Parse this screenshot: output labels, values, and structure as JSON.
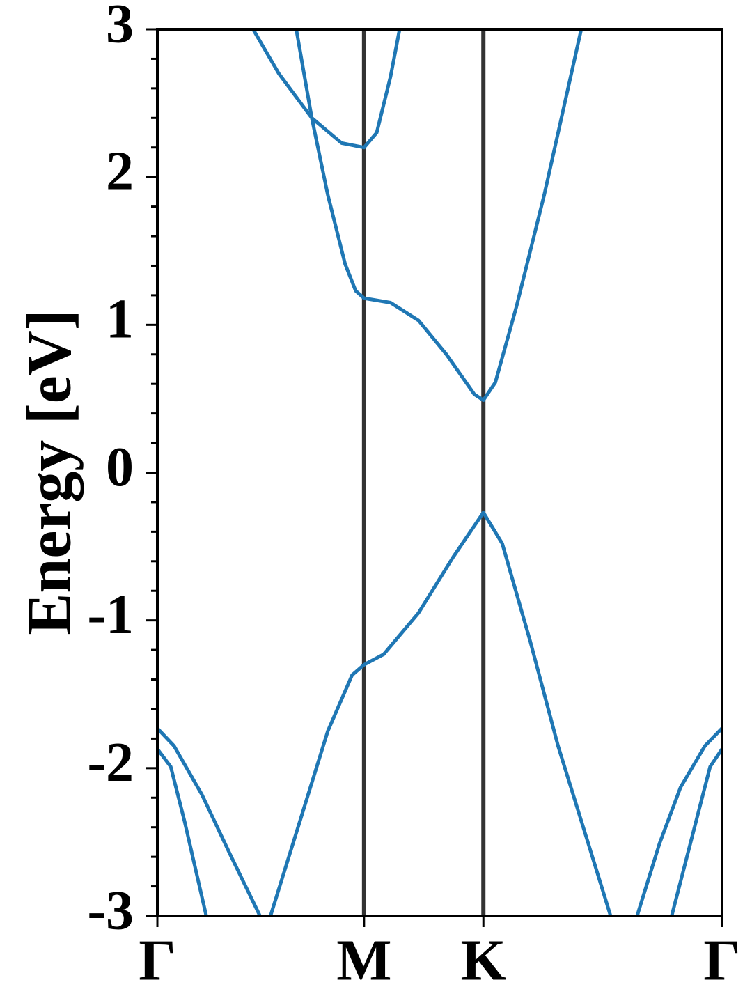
{
  "chart_data": {
    "type": "line",
    "ylabel": "Energy [eV]",
    "xlim": [
      0,
      2.366
    ],
    "ylim": [
      -3,
      3
    ],
    "xticks": [
      {
        "value": 0,
        "label": "Γ"
      },
      {
        "value": 0.866,
        "label": "M"
      },
      {
        "value": 1.366,
        "label": "K"
      },
      {
        "value": 2.366,
        "label": "Γ"
      }
    ],
    "yticks": [
      -3,
      -2,
      -1,
      0,
      1,
      2,
      3
    ],
    "yminorticks": [
      -2.8,
      -2.6,
      -2.4,
      -2.2,
      -1.8,
      -1.6,
      -1.4,
      -1.2,
      -0.8,
      -0.6,
      -0.4,
      -0.2,
      0.2,
      0.4,
      0.6,
      0.8,
      1.2,
      1.4,
      1.6,
      1.8,
      2.2,
      2.4,
      2.6,
      2.8
    ],
    "vlines": [
      0.866,
      1.366
    ],
    "vline_color": "#333333",
    "series": [
      {
        "color": "#1f77b4",
        "x": [
          0.401,
          0.509,
          0.647,
          0.772,
          0.866,
          0.919,
          0.977,
          1.015
        ],
        "values": [
          3.0,
          2.7,
          2.4,
          2.23,
          2.2,
          2.3,
          2.68,
          3.0
        ]
      },
      {
        "color": "#1f77b4",
        "x": [
          0.582,
          0.647,
          0.714,
          0.787,
          0.831,
          0.866,
          0.977,
          1.094,
          1.211,
          1.328,
          1.366,
          1.416,
          1.504,
          1.621,
          1.776
        ],
        "values": [
          3.0,
          2.4,
          1.88,
          1.41,
          1.23,
          1.18,
          1.15,
          1.03,
          0.8,
          0.53,
          0.49,
          0.61,
          1.12,
          1.88,
          3.0
        ]
      },
      {
        "color": "#1f77b4",
        "x": [
          0.474,
          0.597,
          0.714,
          0.816,
          0.866,
          0.948,
          1.094,
          1.24,
          1.366,
          1.445,
          1.562,
          1.679,
          1.796,
          1.899
        ],
        "values": [
          -3.0,
          -2.36,
          -1.75,
          -1.37,
          -1.3,
          -1.23,
          -0.95,
          -0.57,
          -0.27,
          -0.48,
          -1.14,
          -1.85,
          -2.46,
          -3.0
        ]
      },
      {
        "color": "#1f77b4",
        "x": [
          0,
          0.07,
          0.187,
          0.304,
          0.43
        ],
        "values": [
          -1.73,
          -1.85,
          -2.18,
          -2.58,
          -3.0
        ]
      },
      {
        "color": "#1f77b4",
        "x": [
          0,
          0.056,
          0.114,
          0.205
        ],
        "values": [
          -1.87,
          -1.99,
          -2.36,
          -3.0
        ]
      },
      {
        "color": "#1f77b4",
        "x": [
          2.366,
          2.294,
          2.192,
          2.104,
          2.01
        ],
        "values": [
          -1.73,
          -1.85,
          -2.13,
          -2.51,
          -3.0
        ]
      },
      {
        "color": "#1f77b4",
        "x": [
          2.366,
          2.316,
          2.257,
          2.155
        ],
        "values": [
          -1.87,
          -1.99,
          -2.36,
          -3.0
        ]
      }
    ]
  }
}
